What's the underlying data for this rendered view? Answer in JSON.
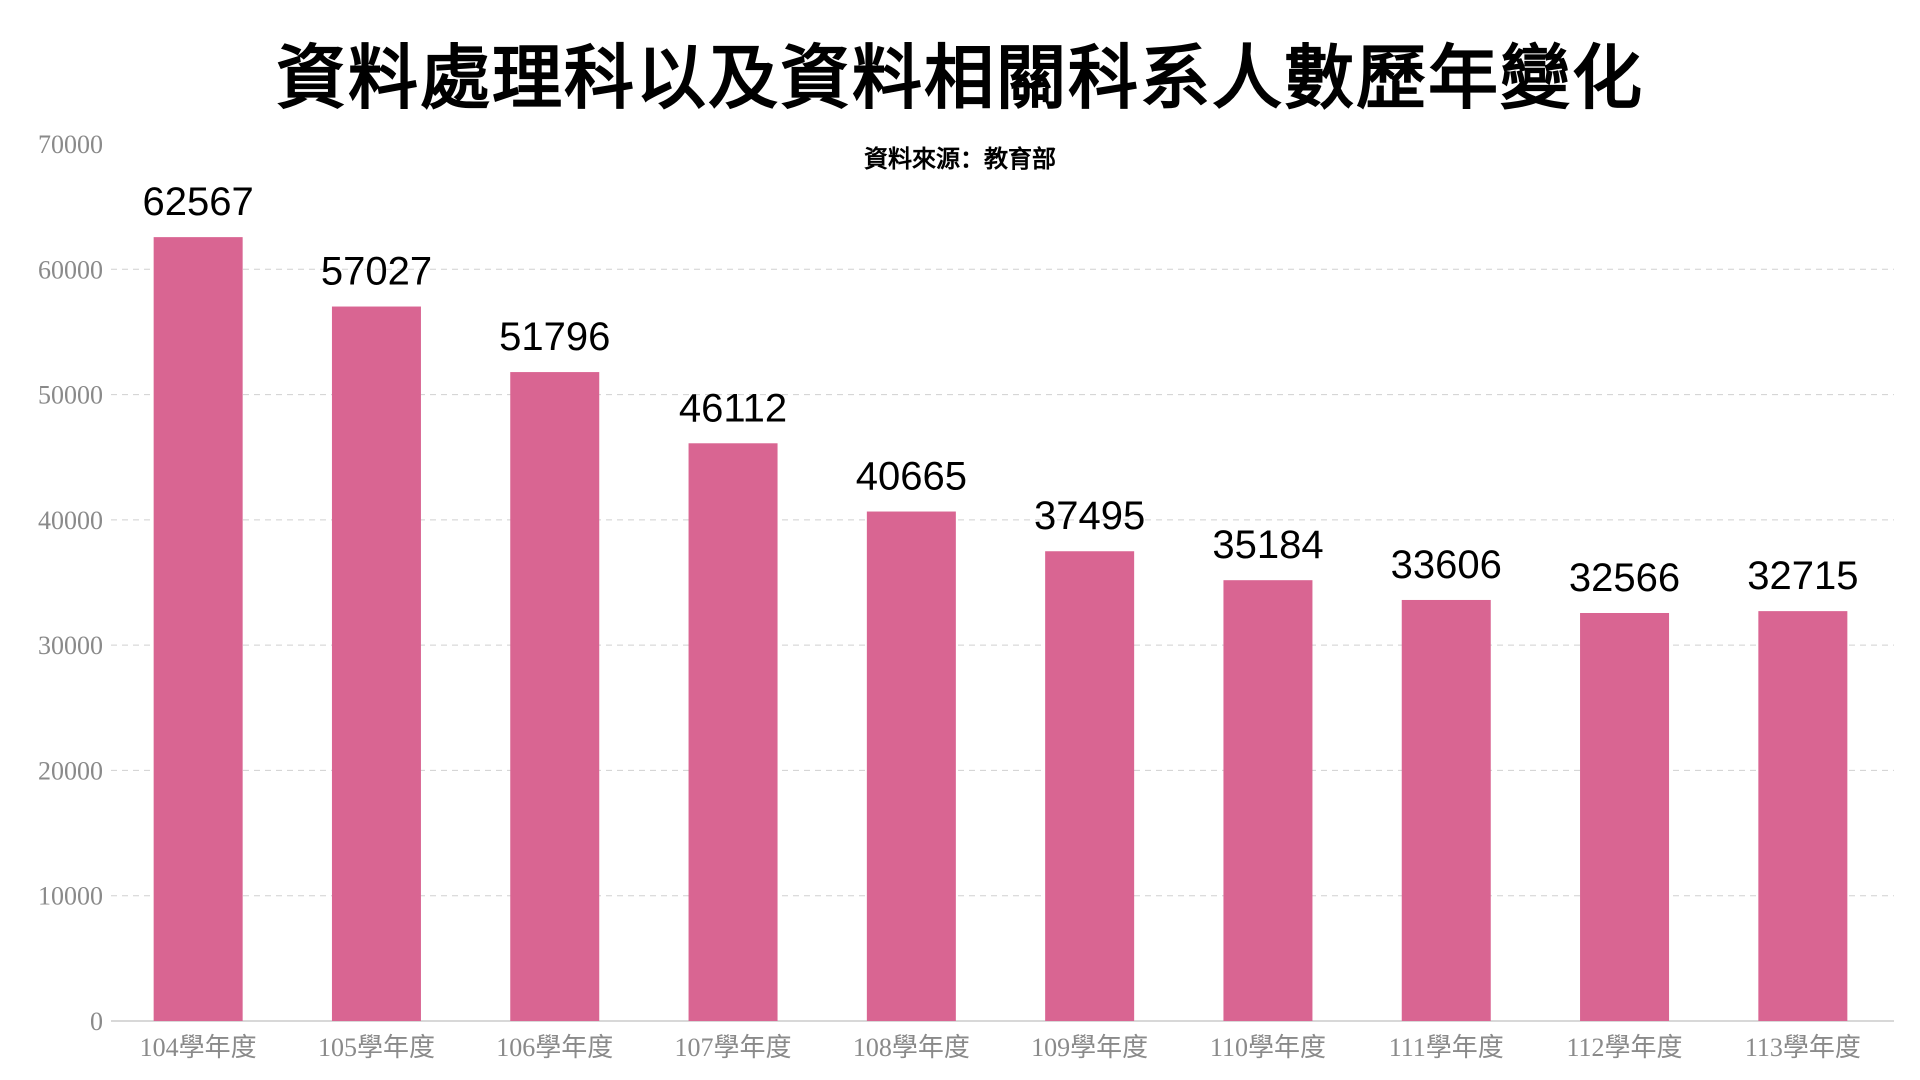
{
  "chart_data": {
    "type": "bar",
    "title": "資料處理科以及資料相關科系人數歷年變化",
    "subtitle": "資料來源：教育部",
    "xlabel": "",
    "ylabel": "",
    "categories": [
      "104學年度",
      "105學年度",
      "106學年度",
      "107學年度",
      "108學年度",
      "109學年度",
      "110學年度",
      "111學年度",
      "112學年度",
      "113學年度"
    ],
    "values": [
      62567,
      57027,
      51796,
      46112,
      40665,
      37495,
      35184,
      33606,
      32566,
      32715
    ],
    "ylim": [
      0,
      70000
    ],
    "yticks": [
      0,
      10000,
      20000,
      30000,
      40000,
      50000,
      60000,
      70000
    ],
    "grid": true,
    "legend": "none",
    "bar_color": "#d96592"
  }
}
